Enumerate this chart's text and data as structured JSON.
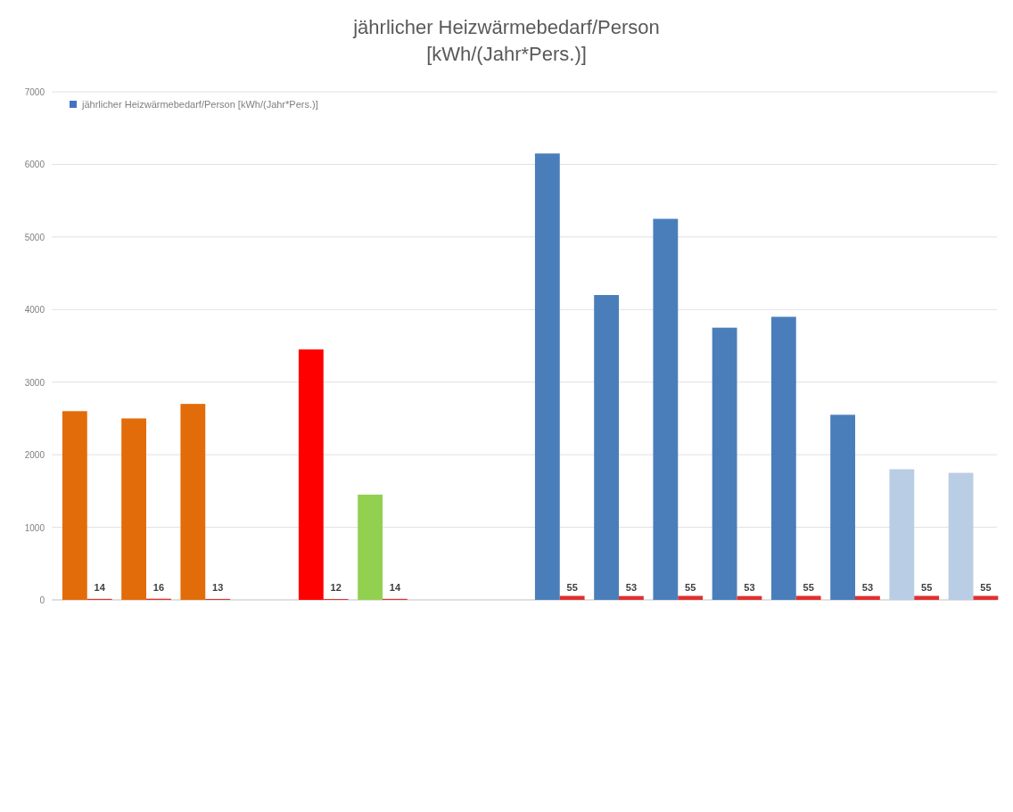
{
  "chart_data": {
    "type": "bar",
    "title": "jährlicher Heizwärmebedarf/Person",
    "subtitle": "[kWh/(Jahr*Pers.)]",
    "categories": [
      null,
      null,
      null,
      null,
      null,
      null,
      null,
      null,
      null,
      null,
      null,
      null,
      null,
      null,
      null,
      null
    ],
    "series": [
      {
        "name": "jährlicher Heizwärmebedarf/Person [kWh/(Jahr*Pers.)]",
        "color": "#4472c4",
        "colors": [
          "#e36c0a",
          "#e36c0a",
          "#e36c0a",
          null,
          "#ff0000",
          "#92d050",
          null,
          null,
          "#4a7ebb",
          "#4a7ebb",
          "#4a7ebb",
          "#4a7ebb",
          "#4a7ebb",
          "#4a7ebb",
          "#b9cde5",
          "#b9cde5"
        ],
        "values": [
          2600,
          2500,
          2700,
          null,
          3450,
          1450,
          null,
          null,
          6150,
          4200,
          5250,
          3750,
          3900,
          2550,
          1800,
          1750
        ]
      },
      {
        "color": "#e0302f",
        "values": [
          14,
          16,
          13,
          null,
          12,
          14,
          null,
          null,
          55,
          53,
          55,
          53,
          55,
          53,
          55,
          55
        ],
        "value_labels": [
          "14",
          "16",
          "13",
          null,
          "12",
          "14",
          null,
          null,
          "55",
          "53",
          "55",
          "53",
          "55",
          "53",
          "55",
          "55"
        ]
      }
    ],
    "ylim": [
      0,
      7000
    ],
    "yticks": [
      0,
      1000,
      2000,
      3000,
      4000,
      5000,
      6000,
      7000
    ],
    "grid": "y",
    "legend": "top left"
  }
}
